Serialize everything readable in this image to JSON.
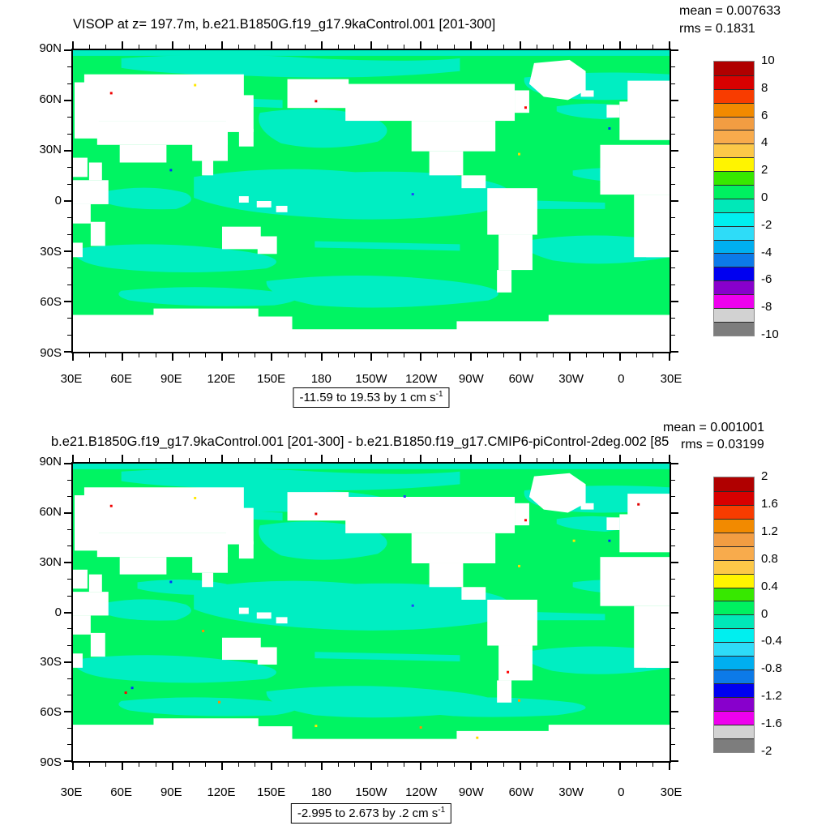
{
  "plot1": {
    "title": "VISOP at z= 197.7m, b.e21.B1850G.f19_g17.9kaControl.001 [201-300]",
    "mean_label": "mean = 0.007633",
    "rms_label": "rms = 0.1831",
    "range_label": "-11.59 to 19.53 by 1 cm s",
    "range_sup": "-1",
    "colorbar_labels": [
      "10",
      "8",
      "6",
      "4",
      "2",
      "0",
      "-2",
      "-4",
      "-6",
      "-8",
      "-10"
    ]
  },
  "plot2": {
    "title": "b.e21.B1850G.f19_g17.9kaControl.001 [201-300] - b.e21.B1850.f19_g17.CMIP6-piControl-2deg.002 [85",
    "mean_label": "mean = 0.001001",
    "rms_label": "rms = 0.03199",
    "range_label": "-2.995 to 2.673 by .2 cm s",
    "range_sup": "-1",
    "colorbar_labels": [
      "2",
      "1.6",
      "1.2",
      "0.8",
      "0.4",
      "0",
      "-0.4",
      "-0.8",
      "-1.2",
      "-1.6",
      "-2"
    ]
  },
  "axes": {
    "x_labels": [
      "30E",
      "60E",
      "90E",
      "120E",
      "150E",
      "180",
      "150W",
      "120W",
      "90W",
      "60W",
      "30W",
      "0",
      "30E"
    ],
    "y_labels": [
      "90N",
      "60N",
      "30N",
      "0",
      "30S",
      "60S",
      "90S"
    ]
  },
  "colorbar_colors": [
    "#b00000",
    "#d80000",
    "#f83c00",
    "#f28a00",
    "#f29d42",
    "#f8ab4c",
    "#fcc848",
    "#fff400",
    "#37e800",
    "#00f060",
    "#00e8b8",
    "#00efef",
    "#2edcf8",
    "#00aff0",
    "#0c7ae8",
    "#0000f0",
    "#8800cc",
    "#ee00ee",
    "#d2d2d2",
    "#7d7d7d"
  ],
  "map_colors": {
    "ocean": "#00f462",
    "patch": "#00eec2",
    "land": "#ffffff"
  },
  "chart_data": [
    {
      "type": "heatmap",
      "subtype": "filled-contour global lat-lon map (NCL style)",
      "title": "VISOP at z= 197.7m, b.e21.B1850G.f19_g17.9kaControl.001 [201-300]",
      "stats": {
        "mean": 0.007633,
        "rms": 0.1831
      },
      "field_range_note": "-11.59 to 19.53 by 1 cm s-1",
      "units": "cm s-1",
      "contour_interval": 1,
      "colorbar_ticks": [
        10,
        8,
        6,
        4,
        2,
        0,
        -2,
        -4,
        -6,
        -8,
        -10
      ],
      "x_ticks": [
        "30E",
        "60E",
        "90E",
        "120E",
        "150E",
        "180",
        "150W",
        "120W",
        "90W",
        "60W",
        "30W",
        "0",
        "30E"
      ],
      "y_ticks": [
        "90N",
        "60N",
        "30N",
        "0",
        "30S",
        "60S",
        "90S"
      ],
      "x_range_deg": [
        30,
        390
      ],
      "y_range_deg": [
        -90,
        90
      ],
      "dominant_field_values": "ocean mostly 0 to 1 (spring green) with patches -1 to 0 (turquoise); rare colored specks up to +/-10",
      "land_mask": "white",
      "legend_position": "right vertical colorbar, 20 boxes",
      "grid": false
    },
    {
      "type": "heatmap",
      "subtype": "filled-contour global lat-lon map (difference plot)",
      "title": "b.e21.B1850G.f19_g17.9kaControl.001 [201-300] - b.e21.B1850.f19_g17.CMIP6-piControl-2deg.002 [85",
      "stats": {
        "mean": 0.001001,
        "rms": 0.03199
      },
      "field_range_note": "-2.995 to 2.673 by .2 cm s-1",
      "units": "cm s-1",
      "contour_interval": 0.2,
      "colorbar_ticks": [
        2,
        1.6,
        1.2,
        0.8,
        0.4,
        0,
        -0.4,
        -0.8,
        -1.2,
        -1.6,
        -2
      ],
      "x_ticks": [
        "30E",
        "60E",
        "90E",
        "120E",
        "150E",
        "180",
        "150W",
        "120W",
        "90W",
        "60W",
        "30W",
        "0",
        "30E"
      ],
      "y_ticks": [
        "90N",
        "60N",
        "30N",
        "0",
        "30S",
        "60S",
        "90S"
      ],
      "x_range_deg": [
        30,
        390
      ],
      "y_range_deg": [
        -90,
        90
      ],
      "dominant_field_values": "ocean mostly -0.2 to 0.2 (green/turquoise) with scattered small specks of larger differences",
      "land_mask": "white",
      "legend_position": "right vertical colorbar, 20 boxes",
      "grid": false
    }
  ]
}
